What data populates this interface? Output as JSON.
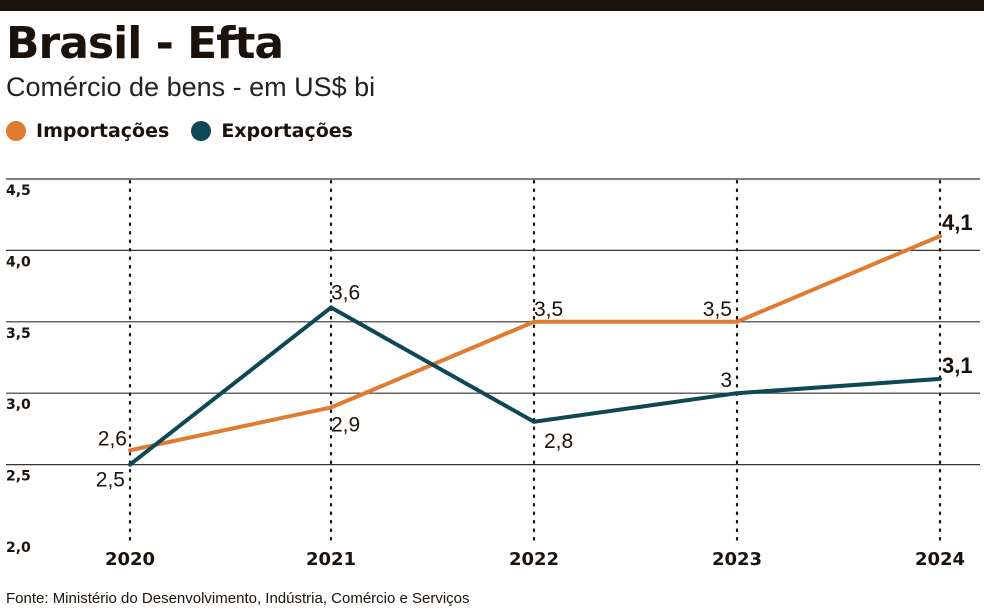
{
  "title": "Brasil - Efta",
  "subtitle": "Comércio de bens - em US$ bi",
  "source": "Fonte: Ministério do Desenvolvimento, Indústria, Comércio e Serviços",
  "colors": {
    "importacoes": "#e07b30",
    "exportacoes": "#0e4755",
    "bar": "#1a120b"
  },
  "chart_data": {
    "type": "line",
    "categories": [
      "2020",
      "2021",
      "2022",
      "2023",
      "2024"
    ],
    "ylim": [
      2.0,
      4.5
    ],
    "yticks": [
      "2,0",
      "2,5",
      "3,0",
      "3,5",
      "4,0",
      "4,5"
    ],
    "grid": true,
    "legend": "top-left",
    "series": [
      {
        "name": "Importações",
        "values": [
          2.6,
          2.9,
          3.5,
          3.5,
          4.1
        ],
        "labels": [
          "2,6",
          "2,9",
          "3,5",
          "3,5",
          "4,1"
        ]
      },
      {
        "name": "Exportações",
        "values": [
          2.5,
          3.6,
          2.8,
          3.0,
          3.1
        ],
        "labels": [
          "2,5",
          "3,6",
          "2,8",
          "3",
          "3,1"
        ]
      }
    ]
  }
}
